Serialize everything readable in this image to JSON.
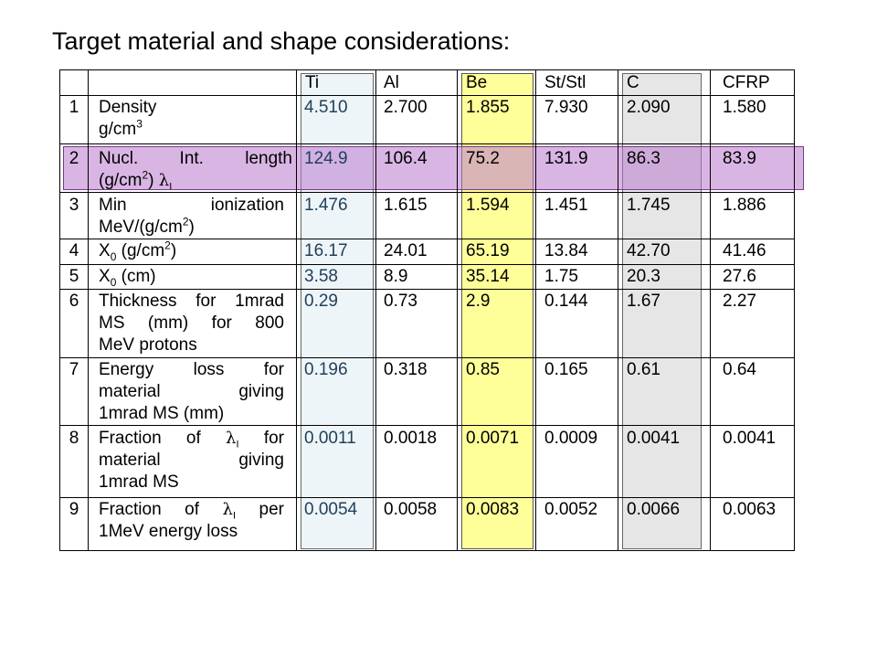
{
  "title": "Target material and shape considerations:",
  "columns": [
    "Ti",
    "Al",
    "Be",
    "St/Stl",
    "C",
    "CFRP"
  ],
  "rows": [
    {
      "num": "1",
      "label_lines": [
        "Density",
        "g/cm3"
      ],
      "values": [
        "4.510",
        "2.700",
        "1.855",
        "7.930",
        "2.090",
        "1.580"
      ]
    },
    {
      "num": "2",
      "label_lines": [
        "Nucl. Int. length",
        "(g/cm2) λI"
      ],
      "values": [
        "124.9",
        "106.4",
        "75.2",
        "131.9",
        "86.3",
        "83.9"
      ]
    },
    {
      "num": "3",
      "label_lines": [
        "Min ionization",
        "MeV/(g/cm2)"
      ],
      "values": [
        "1.476",
        "1.615",
        "1.594",
        "1.451",
        "1.745",
        "1.886"
      ]
    },
    {
      "num": "4",
      "label_lines": [
        "X0 (g/cm2)"
      ],
      "values": [
        "16.17",
        "24.01",
        "65.19",
        "13.84",
        "42.70",
        "41.46"
      ]
    },
    {
      "num": "5",
      "label_lines": [
        "X0 (cm)"
      ],
      "values": [
        "3.58",
        "8.9",
        "35.14",
        "1.75",
        "20.3",
        "27.6"
      ]
    },
    {
      "num": "6",
      "label_lines": [
        "Thickness for 1mrad",
        "MS (mm) for 800",
        "MeV protons"
      ],
      "values": [
        "0.29",
        "0.73",
        "2.9",
        "0.144",
        "1.67",
        "2.27"
      ]
    },
    {
      "num": "7",
      "label_lines": [
        "Energy loss for",
        "material giving",
        "1mrad MS (mm)"
      ],
      "values": [
        "0.196",
        "0.318",
        "0.85",
        "0.165",
        "0.61",
        "0.64"
      ]
    },
    {
      "num": "8",
      "label_lines": [
        "Fraction of λI for",
        "material giving",
        "1mrad MS"
      ],
      "values": [
        "0.0011",
        "0.0018",
        "0.0071",
        "0.0009",
        "0.0041",
        "0.0041"
      ]
    },
    {
      "num": "9",
      "label_lines": [
        "Fraction of λI per",
        "1MeV energy loss"
      ],
      "values": [
        "0.0054",
        "0.0058",
        "0.0083",
        "0.0052",
        "0.0066",
        "0.0063"
      ]
    }
  ],
  "label_parts": {
    "r1_l2_base": "g/cm",
    "r1_l2_sup": "3",
    "r2_l2_a": "(g/cm",
    "r2_l2_sup": "2",
    "r2_l2_b": ")",
    "lambda": "λ",
    "lambda_sub": "I",
    "r3_l2_a": "MeV/(g/cm",
    "r3_l2_sup": "2",
    "r3_l2_b": ")",
    "r4_a": "X",
    "r4_sub": "0",
    "r4_b": " (g/cm",
    "r4_sup": "2",
    "r4_c": ")",
    "r5_a": "X",
    "r5_sub": "0",
    "r5_b": " (cm)",
    "r8_l1_a": "Fraction of",
    "r8_l1_b": "for",
    "r9_l1_a": "Fraction of",
    "r9_l1_b": "per"
  }
}
